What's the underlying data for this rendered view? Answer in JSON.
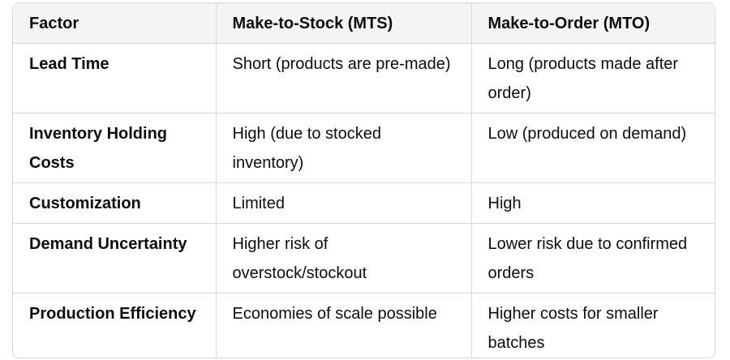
{
  "table": {
    "columns": [
      "Factor",
      "Make-to-Stock (MTS)",
      "Make-to-Order (MTO)"
    ],
    "rows": [
      [
        "Lead Time",
        "Short (products are pre-made)",
        "Long (products made after order)"
      ],
      [
        "Inventory Holding Costs",
        "High (due to stocked inventory)",
        "Low (produced on demand)"
      ],
      [
        "Customization",
        "Limited",
        "High"
      ],
      [
        "Demand Uncertainty",
        "Higher risk of overstock/stockout",
        "Lower risk due to confirmed orders"
      ],
      [
        "Production Efficiency",
        "Economies of scale possible",
        "Higher costs for smaller batches"
      ]
    ]
  }
}
